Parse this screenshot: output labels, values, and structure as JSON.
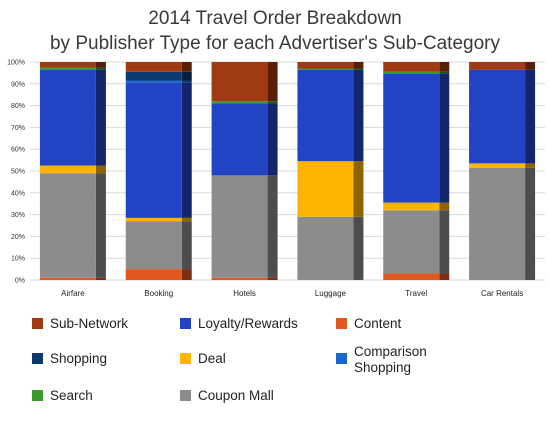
{
  "chart_data": {
    "type": "bar",
    "stacked": true,
    "percent": true,
    "title": [
      "2014 Travel Order Breakdown",
      "by Publisher Type for each Advertiser's Sub-Category"
    ],
    "categories": [
      "Airfare",
      "Booking",
      "Hotels",
      "Luggage",
      "Travel",
      "Car Rentals"
    ],
    "ylim": [
      0,
      100
    ],
    "yticks": [
      "0%",
      "10%",
      "20%",
      "30%",
      "40%",
      "50%",
      "60%",
      "70%",
      "80%",
      "90%",
      "100%"
    ],
    "grid": true,
    "legend_position": "bottom",
    "series": [
      {
        "name": "Content",
        "color": "#e2571e",
        "values": [
          1,
          5,
          1,
          0,
          3,
          0
        ]
      },
      {
        "name": "Coupon Mall",
        "color": "#8c8c8c",
        "values": [
          48,
          22,
          47,
          29,
          29,
          51.5
        ]
      },
      {
        "name": "Deal",
        "color": "#ffb400",
        "values": [
          3.5,
          1.5,
          0,
          25.5,
          3.5,
          2
        ]
      },
      {
        "name": "Loyalty/Rewards",
        "color": "#2244c4",
        "values": [
          44,
          62,
          33,
          42,
          59,
          43
        ]
      },
      {
        "name": "Comparison Shopping",
        "color": "#1a66cc",
        "values": [
          0,
          1,
          0,
          0,
          0,
          0
        ]
      },
      {
        "name": "Search",
        "color": "#3a9a2a",
        "values": [
          1,
          0,
          1,
          0.5,
          1,
          0
        ]
      },
      {
        "name": "Shopping",
        "color": "#0d3a6e",
        "values": [
          0,
          4,
          0,
          0,
          0,
          0
        ]
      },
      {
        "name": "Sub-Network",
        "color": "#a03a10",
        "values": [
          2.5,
          4.5,
          18,
          3,
          4.5,
          3.5
        ]
      }
    ],
    "legend": [
      {
        "name": "Sub-Network",
        "color": "#a03a10"
      },
      {
        "name": "Loyalty/Rewards",
        "color": "#2244c4"
      },
      {
        "name": "Content",
        "color": "#e2571e"
      },
      {
        "name": "Shopping",
        "color": "#0d3a6e"
      },
      {
        "name": "Deal",
        "color": "#ffb400"
      },
      {
        "name": "Comparison\nShopping",
        "color": "#1a66cc"
      },
      {
        "name": "Search",
        "color": "#3a9a2a"
      },
      {
        "name": "Coupon Mall",
        "color": "#8c8c8c"
      }
    ]
  }
}
